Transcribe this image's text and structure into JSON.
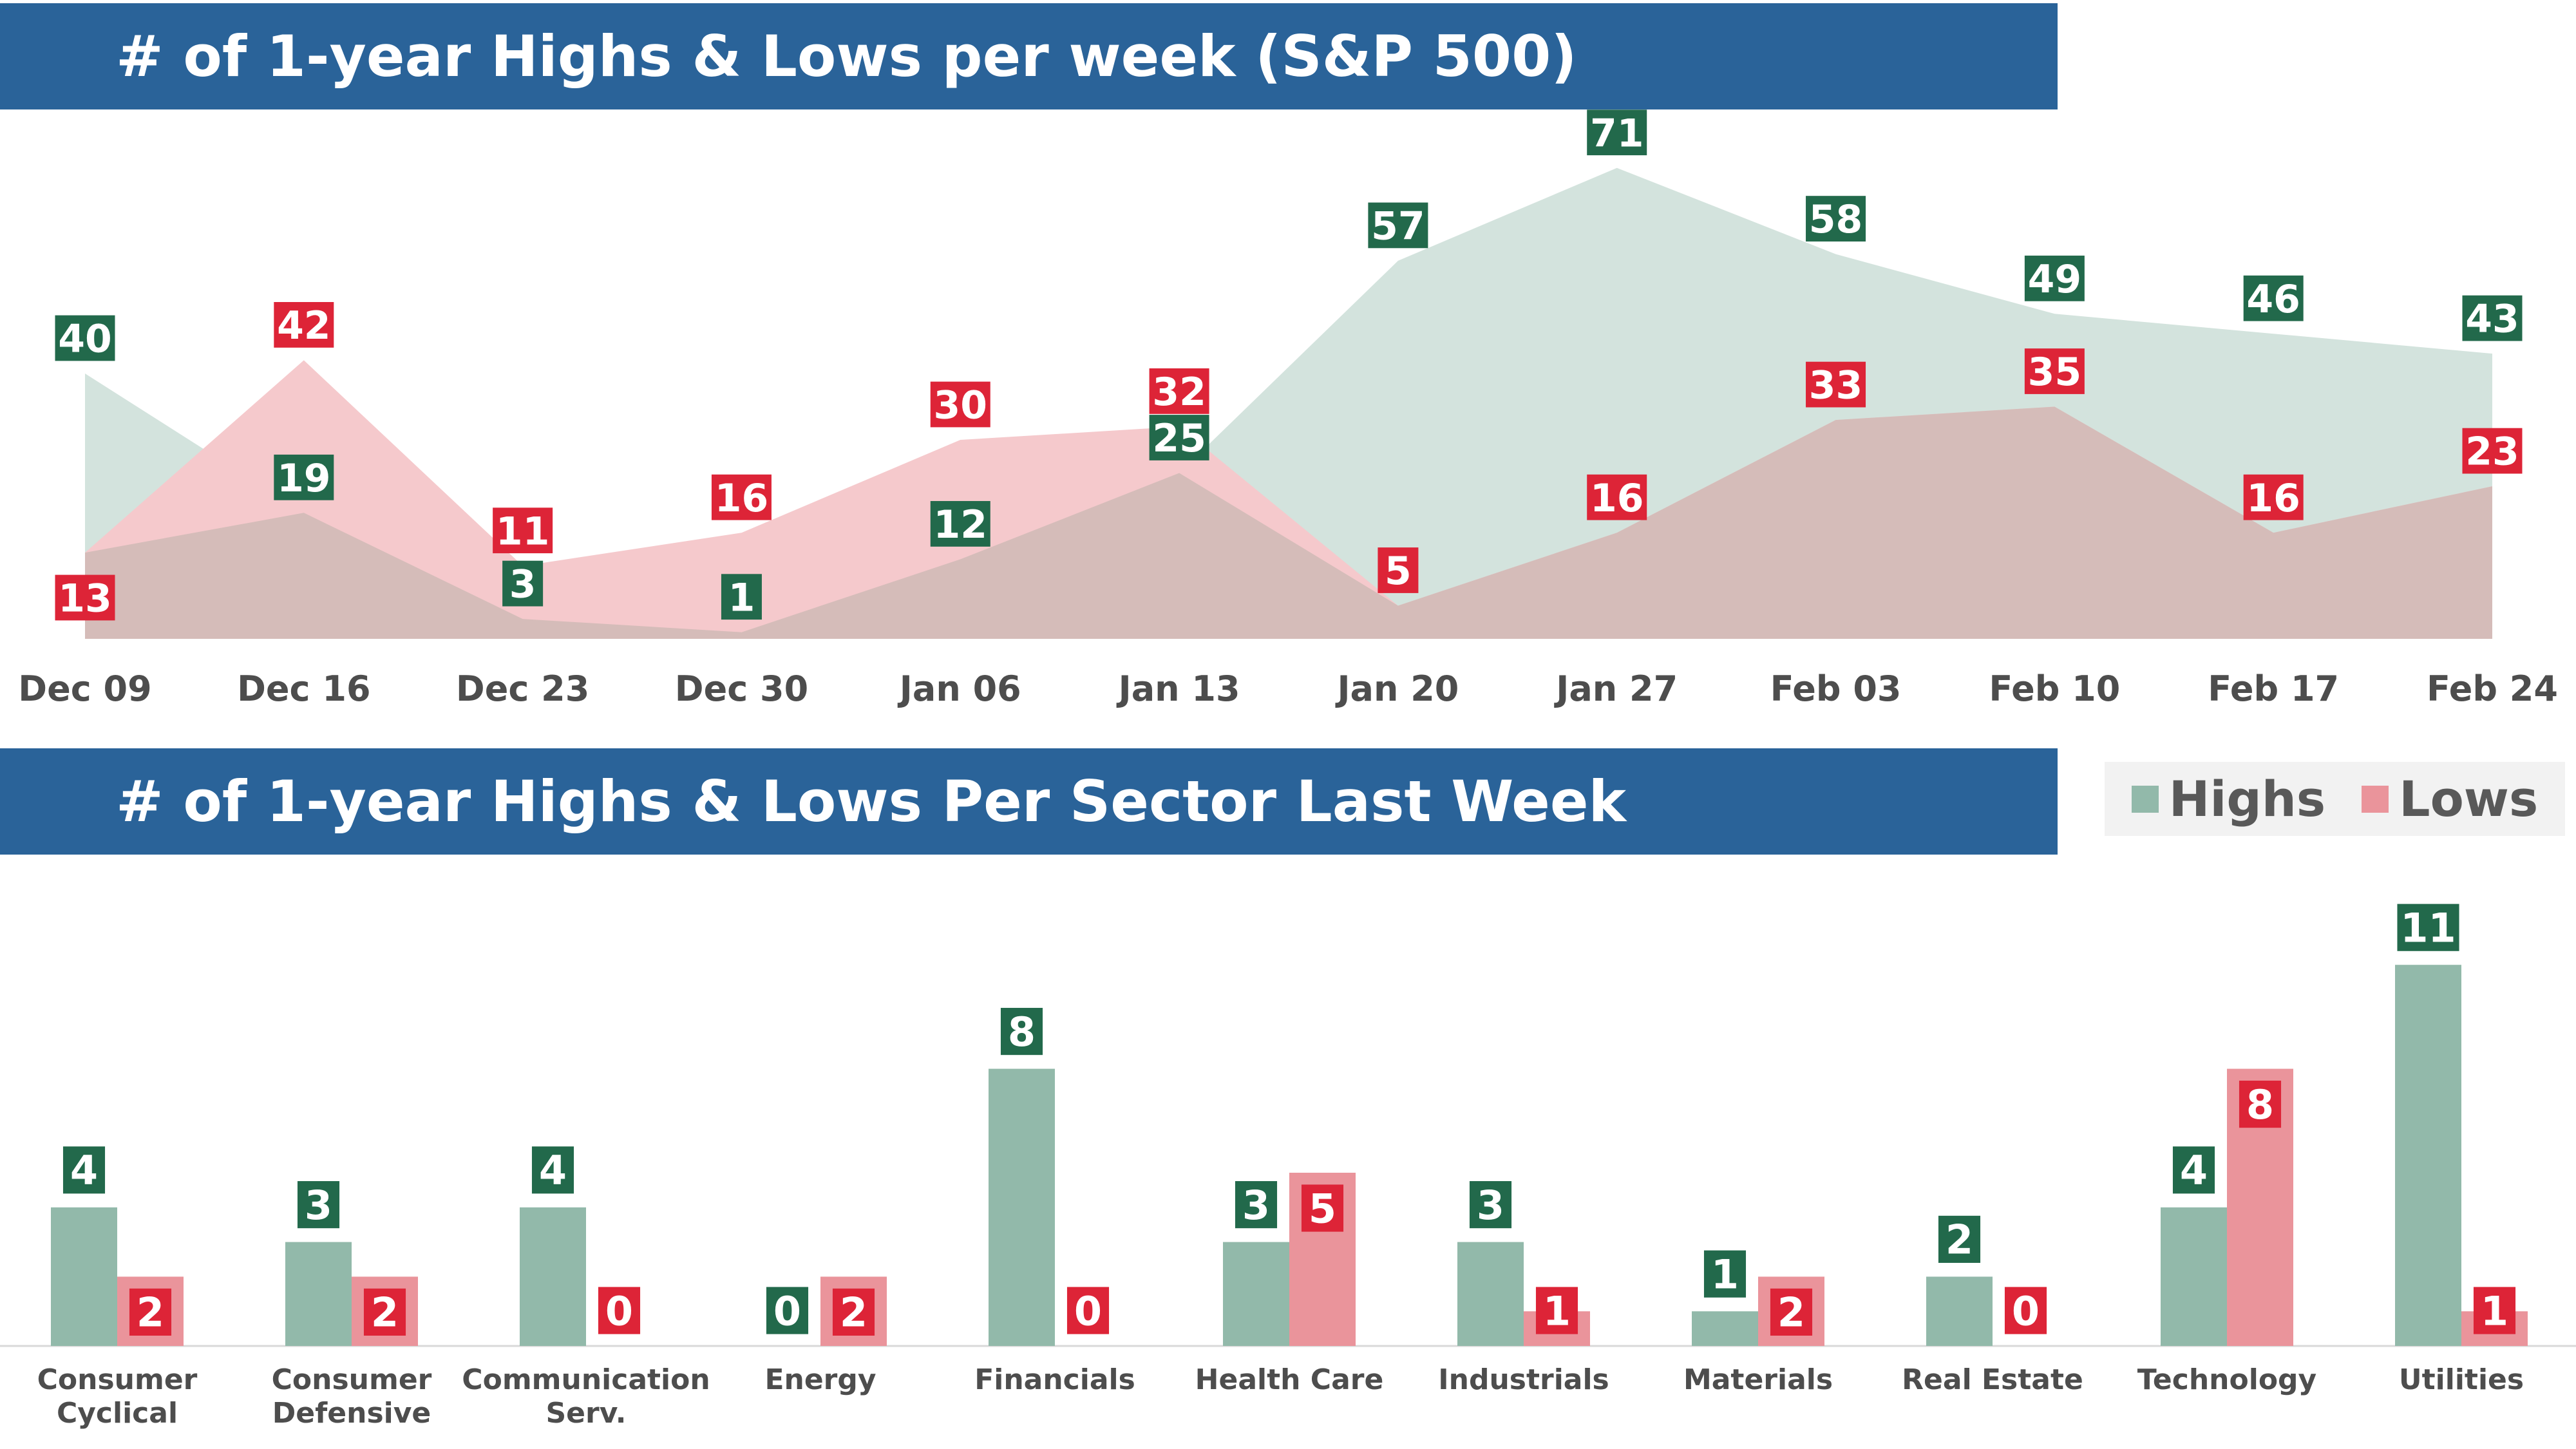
{
  "colors": {
    "banner": "#2a6399",
    "highs_fill": "#d3e3dd",
    "lows_fill": "#f5c9cc",
    "overlap_fill": "#d5bcb9",
    "highs_label": "#22694b",
    "lows_label": "#dd2437",
    "highs_bar": "#92b9aa",
    "lows_bar": "#ea949b",
    "axis_text": "#4d4d4d"
  },
  "banner1": {
    "title": "# of 1-year Highs & Lows per week (S&P 500)"
  },
  "banner2": {
    "title": "# of 1-year Highs & Lows Per Sector Last Week"
  },
  "legend": {
    "highs": "Highs",
    "lows": "Lows"
  },
  "chart_data": [
    {
      "type": "area",
      "categories": [
        "Dec 09",
        "Dec 16",
        "Dec 23",
        "Dec 30",
        "Jan 06",
        "Jan 13",
        "Jan 20",
        "Jan 27",
        "Feb 03",
        "Feb 10",
        "Feb 17",
        "Feb 24"
      ],
      "series": [
        {
          "name": "Highs",
          "values": [
            40,
            19,
            3,
            1,
            12,
            25,
            57,
            71,
            58,
            49,
            46,
            43
          ]
        },
        {
          "name": "Lows",
          "values": [
            13,
            42,
            11,
            16,
            30,
            32,
            5,
            16,
            33,
            35,
            16,
            23
          ]
        }
      ],
      "data_labels": true
    },
    {
      "type": "bar",
      "categories": [
        "Consumer Cyclical",
        "Consumer Defensive",
        "Communication Serv.",
        "Energy",
        "Financials",
        "Health Care",
        "Industrials",
        "Materials",
        "Real Estate",
        "Technology",
        "Utilities"
      ],
      "category_lines": [
        [
          "Consumer",
          "Cyclical"
        ],
        [
          "Consumer",
          "Defensive"
        ],
        [
          "Communication",
          "Serv."
        ],
        [
          "Energy"
        ],
        [
          "Financials"
        ],
        [
          "Health Care"
        ],
        [
          "Industrials"
        ],
        [
          "Materials"
        ],
        [
          "Real Estate"
        ],
        [
          "Technology"
        ],
        [
          "Utilities"
        ]
      ],
      "series": [
        {
          "name": "Highs",
          "values": [
            4,
            3,
            4,
            0,
            8,
            3,
            3,
            1,
            2,
            4,
            11
          ]
        },
        {
          "name": "Lows",
          "values": [
            2,
            2,
            0,
            2,
            0,
            5,
            1,
            2,
            0,
            8,
            1
          ]
        }
      ],
      "data_labels": true
    }
  ]
}
